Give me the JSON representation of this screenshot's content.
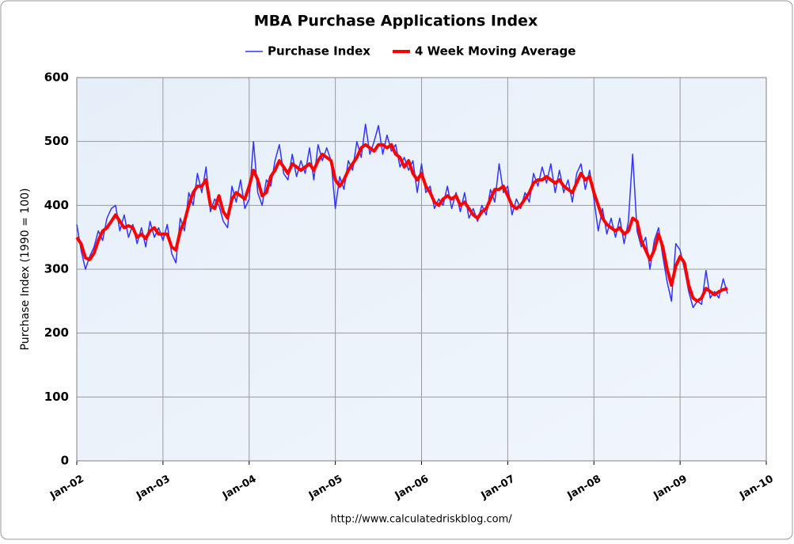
{
  "chart_data": {
    "type": "line",
    "title": "MBA Purchase Applications Index",
    "y_label": "Purchase Index (1990 = 100)",
    "source": "http://www.calculatedriskblog.com/",
    "grid": true,
    "legend": "top",
    "xlim": [
      2002,
      2010
    ],
    "xticks": [
      {
        "value": 2002,
        "label": "Jan-02"
      },
      {
        "value": 2003,
        "label": "Jan-03"
      },
      {
        "value": 2004,
        "label": "Jan-04"
      },
      {
        "value": 2005,
        "label": "Jan-05"
      },
      {
        "value": 2006,
        "label": "Jan-06"
      },
      {
        "value": 2007,
        "label": "Jan-07"
      },
      {
        "value": 2008,
        "label": "Jan-08"
      },
      {
        "value": 2009,
        "label": "Jan-09"
      },
      {
        "value": 2010,
        "label": "Jan-10"
      }
    ],
    "ylim": [
      0,
      600
    ],
    "yticks": [
      0,
      100,
      200,
      300,
      400,
      500,
      600
    ],
    "x": [
      2002.0,
      2002.05,
      2002.1,
      2002.15,
      2002.2,
      2002.25,
      2002.3,
      2002.35,
      2002.4,
      2002.45,
      2002.5,
      2002.55,
      2002.6,
      2002.65,
      2002.7,
      2002.75,
      2002.8,
      2002.85,
      2002.9,
      2002.95,
      2003.0,
      2003.05,
      2003.1,
      2003.15,
      2003.2,
      2003.25,
      2003.3,
      2003.35,
      2003.4,
      2003.45,
      2003.5,
      2003.55,
      2003.6,
      2003.65,
      2003.7,
      2003.75,
      2003.8,
      2003.85,
      2003.9,
      2003.95,
      2004.0,
      2004.05,
      2004.1,
      2004.15,
      2004.2,
      2004.25,
      2004.3,
      2004.35,
      2004.4,
      2004.45,
      2004.5,
      2004.55,
      2004.6,
      2004.65,
      2004.7,
      2004.75,
      2004.8,
      2004.85,
      2004.9,
      2004.95,
      2005.0,
      2005.05,
      2005.1,
      2005.15,
      2005.2,
      2005.25,
      2005.3,
      2005.35,
      2005.4,
      2005.45,
      2005.5,
      2005.55,
      2005.6,
      2005.65,
      2005.7,
      2005.75,
      2005.8,
      2005.85,
      2005.9,
      2005.95,
      2006.0,
      2006.05,
      2006.1,
      2006.15,
      2006.2,
      2006.25,
      2006.3,
      2006.35,
      2006.4,
      2006.45,
      2006.5,
      2006.55,
      2006.6,
      2006.65,
      2006.7,
      2006.75,
      2006.8,
      2006.85,
      2006.9,
      2006.95,
      2007.0,
      2007.05,
      2007.1,
      2007.15,
      2007.2,
      2007.25,
      2007.3,
      2007.35,
      2007.4,
      2007.45,
      2007.5,
      2007.55,
      2007.6,
      2007.65,
      2007.7,
      2007.75,
      2007.8,
      2007.85,
      2007.9,
      2007.95,
      2008.0,
      2008.05,
      2008.1,
      2008.15,
      2008.2,
      2008.25,
      2008.3,
      2008.35,
      2008.4,
      2008.45,
      2008.5,
      2008.55,
      2008.6,
      2008.65,
      2008.7,
      2008.75,
      2008.8,
      2008.85,
      2008.9,
      2008.95,
      2009.0,
      2009.05,
      2009.1,
      2009.15,
      2009.2,
      2009.25,
      2009.3,
      2009.35,
      2009.4,
      2009.45,
      2009.5,
      2009.55
    ],
    "series": [
      {
        "name": "Purchase Index",
        "color": "#3333ff",
        "width": 1.5,
        "values": [
          370,
          330,
          300,
          320,
          335,
          360,
          345,
          380,
          395,
          400,
          360,
          385,
          350,
          370,
          340,
          365,
          335,
          375,
          350,
          365,
          345,
          370,
          325,
          310,
          380,
          360,
          420,
          400,
          450,
          420,
          460,
          390,
          410,
          400,
          375,
          365,
          430,
          405,
          440,
          395,
          410,
          500,
          420,
          400,
          440,
          430,
          470,
          495,
          450,
          440,
          480,
          445,
          470,
          450,
          490,
          440,
          495,
          470,
          490,
          470,
          395,
          445,
          425,
          470,
          455,
          500,
          475,
          527,
          480,
          500,
          525,
          480,
          510,
          485,
          495,
          460,
          475,
          455,
          470,
          420,
          465,
          420,
          430,
          395,
          410,
          400,
          430,
          395,
          420,
          390,
          420,
          380,
          395,
          375,
          400,
          385,
          425,
          405,
          465,
          420,
          430,
          385,
          410,
          395,
          420,
          405,
          450,
          430,
          460,
          435,
          465,
          420,
          455,
          420,
          440,
          405,
          450,
          465,
          425,
          455,
          410,
          360,
          395,
          355,
          380,
          350,
          380,
          340,
          375,
          480,
          360,
          335,
          350,
          300,
          345,
          365,
          320,
          280,
          250,
          340,
          330,
          300,
          265,
          240,
          250,
          245,
          298,
          255,
          265,
          255,
          285,
          262
        ]
      },
      {
        "name": "4 Week Moving Average",
        "color": "#ff0000",
        "width": 4,
        "values": [
          350,
          340,
          318,
          315,
          325,
          345,
          360,
          365,
          375,
          385,
          375,
          365,
          368,
          365,
          350,
          355,
          348,
          360,
          365,
          355,
          355,
          355,
          335,
          330,
          360,
          375,
          400,
          420,
          430,
          430,
          440,
          400,
          395,
          415,
          390,
          380,
          410,
          420,
          415,
          410,
          430,
          455,
          440,
          415,
          420,
          445,
          455,
          470,
          460,
          450,
          465,
          460,
          455,
          460,
          465,
          455,
          470,
          480,
          475,
          470,
          440,
          430,
          440,
          455,
          465,
          475,
          490,
          495,
          490,
          485,
          495,
          495,
          490,
          495,
          480,
          475,
          460,
          470,
          450,
          440,
          450,
          430,
          420,
          405,
          400,
          410,
          415,
          410,
          415,
          400,
          405,
          395,
          385,
          380,
          390,
          395,
          410,
          425,
          425,
          430,
          415,
          400,
          395,
          400,
          410,
          420,
          435,
          440,
          440,
          445,
          440,
          435,
          440,
          430,
          425,
          420,
          435,
          450,
          440,
          445,
          420,
          400,
          380,
          370,
          365,
          360,
          365,
          355,
          360,
          380,
          375,
          345,
          330,
          315,
          330,
          355,
          335,
          300,
          275,
          305,
          320,
          310,
          275,
          255,
          250,
          255,
          270,
          265,
          260,
          265,
          268,
          270
        ]
      }
    ]
  }
}
